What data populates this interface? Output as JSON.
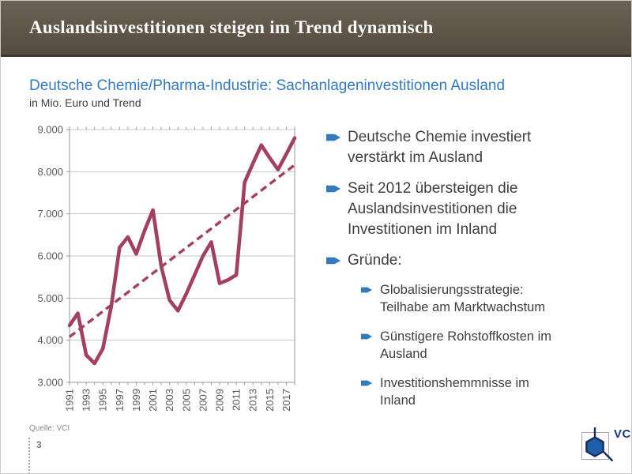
{
  "slide": {
    "header": {
      "title": "Auslandsinvestitionen steigen im Trend dynamisch"
    },
    "subtitle": "Deutsche Chemie/Pharma-Industrie: Sachanlageninvestitionen Ausland",
    "subtitle2": "in Mio. Euro und Trend",
    "source": "Quelle: VCI",
    "page_number": "3",
    "logo_text": "VCI"
  },
  "bullets": {
    "items": [
      {
        "level": 1,
        "text": "Deutsche Chemie investiert\nverstärkt im Ausland"
      },
      {
        "level": 1,
        "text": "Seit 2012 übersteigen die\nAuslandsinvestitionen die\nInvestitionen im Inland"
      },
      {
        "level": 1,
        "text": "Gründe:"
      },
      {
        "level": 2,
        "text": "Globalisierungsstrategie:\nTeilhabe am Marktwachstum"
      },
      {
        "level": 2,
        "text": "Günstigere Rohstoffkosten im\nAusland"
      },
      {
        "level": 2,
        "text": "Investitionshemmnisse im\nInland"
      }
    ],
    "marker_color": "#3279be"
  },
  "chart_data": {
    "type": "line",
    "title": "Deutsche Chemie/Pharma-Industrie: Sachanlageninvestitionen Ausland",
    "subtitle": "in Mio. Euro und Trend",
    "unit": "Mio. Euro",
    "x": [
      1991,
      1992,
      1993,
      1994,
      1995,
      1996,
      1997,
      1998,
      1999,
      2000,
      2001,
      2002,
      2003,
      2004,
      2005,
      2006,
      2007,
      2008,
      2009,
      2010,
      2011,
      2012,
      2013,
      2014,
      2015,
      2016,
      2017,
      2018
    ],
    "series": [
      {
        "name": "Sachanlageninvestitionen Ausland",
        "style": "solid",
        "color": "#A23F63",
        "values": [
          4350,
          4640,
          3650,
          3450,
          3800,
          4800,
          6200,
          6450,
          6050,
          6600,
          7090,
          5750,
          4950,
          4700,
          5100,
          5550,
          6000,
          6330,
          5350,
          5430,
          5550,
          7750,
          8200,
          8630,
          8330,
          8050,
          8420,
          8800
        ]
      },
      {
        "name": "Trend",
        "style": "dashed",
        "color": "#A23F63",
        "trend_endpoints": [
          4080,
          8160
        ]
      }
    ],
    "ylim": [
      3000,
      9000
    ],
    "ytick_values": [
      3000,
      4000,
      5000,
      6000,
      7000,
      8000,
      9000
    ],
    "ytick_labels": [
      "3.000",
      "4.000",
      "5.000",
      "6.000",
      "7.000",
      "8.000",
      "9.000"
    ],
    "xtick_every": 2,
    "grid": true,
    "legend": "none",
    "grid_color": "#C8C8C8",
    "axis_color": "#999999",
    "tick_label_color": "#595959"
  }
}
